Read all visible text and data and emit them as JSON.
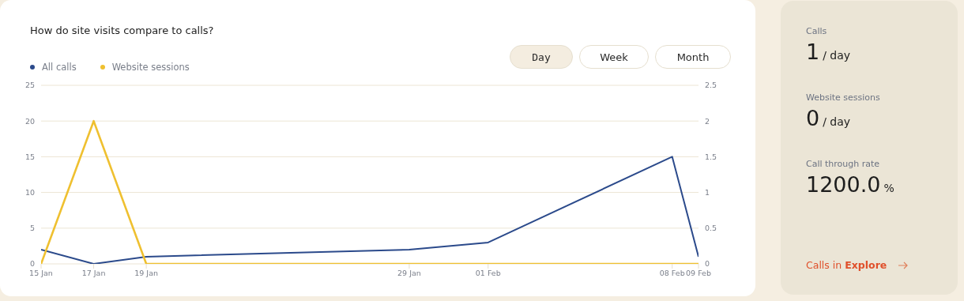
{
  "chart_data": [
    {
      "type": "line",
      "title": "How do site visits compare to calls?",
      "annotations": [
        "Day",
        "Week",
        "Month"
      ],
      "x": [
        "--01-15",
        "--01-17",
        "--01-19",
        "--01-29",
        "--02-01",
        "--02-08",
        "--02-09"
      ],
      "xlim": [
        "--01-15",
        "--02-09"
      ],
      "xticks": [
        {
          "value": "--01-15",
          "label": "15 Jan"
        },
        {
          "value": "--01-17",
          "label": "17 Jan"
        },
        {
          "value": "--01-19",
          "label": "19 Jan"
        },
        {
          "value": "--01-29",
          "label": "29 Jan"
        },
        {
          "value": "--02-01",
          "label": "01 Feb"
        },
        {
          "value": "--02-08",
          "label": "08 Feb"
        },
        {
          "value": "--02-09",
          "label": "09 Feb"
        }
      ],
      "series": [
        {
          "name": "All calls",
          "color": "#2b4a8b",
          "values": [
            2,
            0,
            1,
            2,
            3,
            15,
            1
          ]
        },
        {
          "name": "Website sessions",
          "color": "#efc030",
          "values": [
            0,
            2,
            0,
            0,
            0,
            0,
            0
          ],
          "axis": "y2"
        }
      ],
      "ylim": [
        0,
        25
      ],
      "yticks": [
        0,
        5,
        10,
        15,
        20,
        25
      ],
      "y2lim": [
        0,
        2.5
      ],
      "y2ticks": [
        0,
        0.5,
        1,
        1.5,
        2,
        2.5
      ],
      "grid": "y",
      "legend": "top left"
    },
    {
      "type": "other",
      "annotations": [
        "Calls",
        "1",
        "/ day",
        "Website sessions",
        "0",
        "/ day",
        "Call through rate",
        "1200.0",
        "%",
        "Calls in",
        "Explore"
      ]
    }
  ]
}
